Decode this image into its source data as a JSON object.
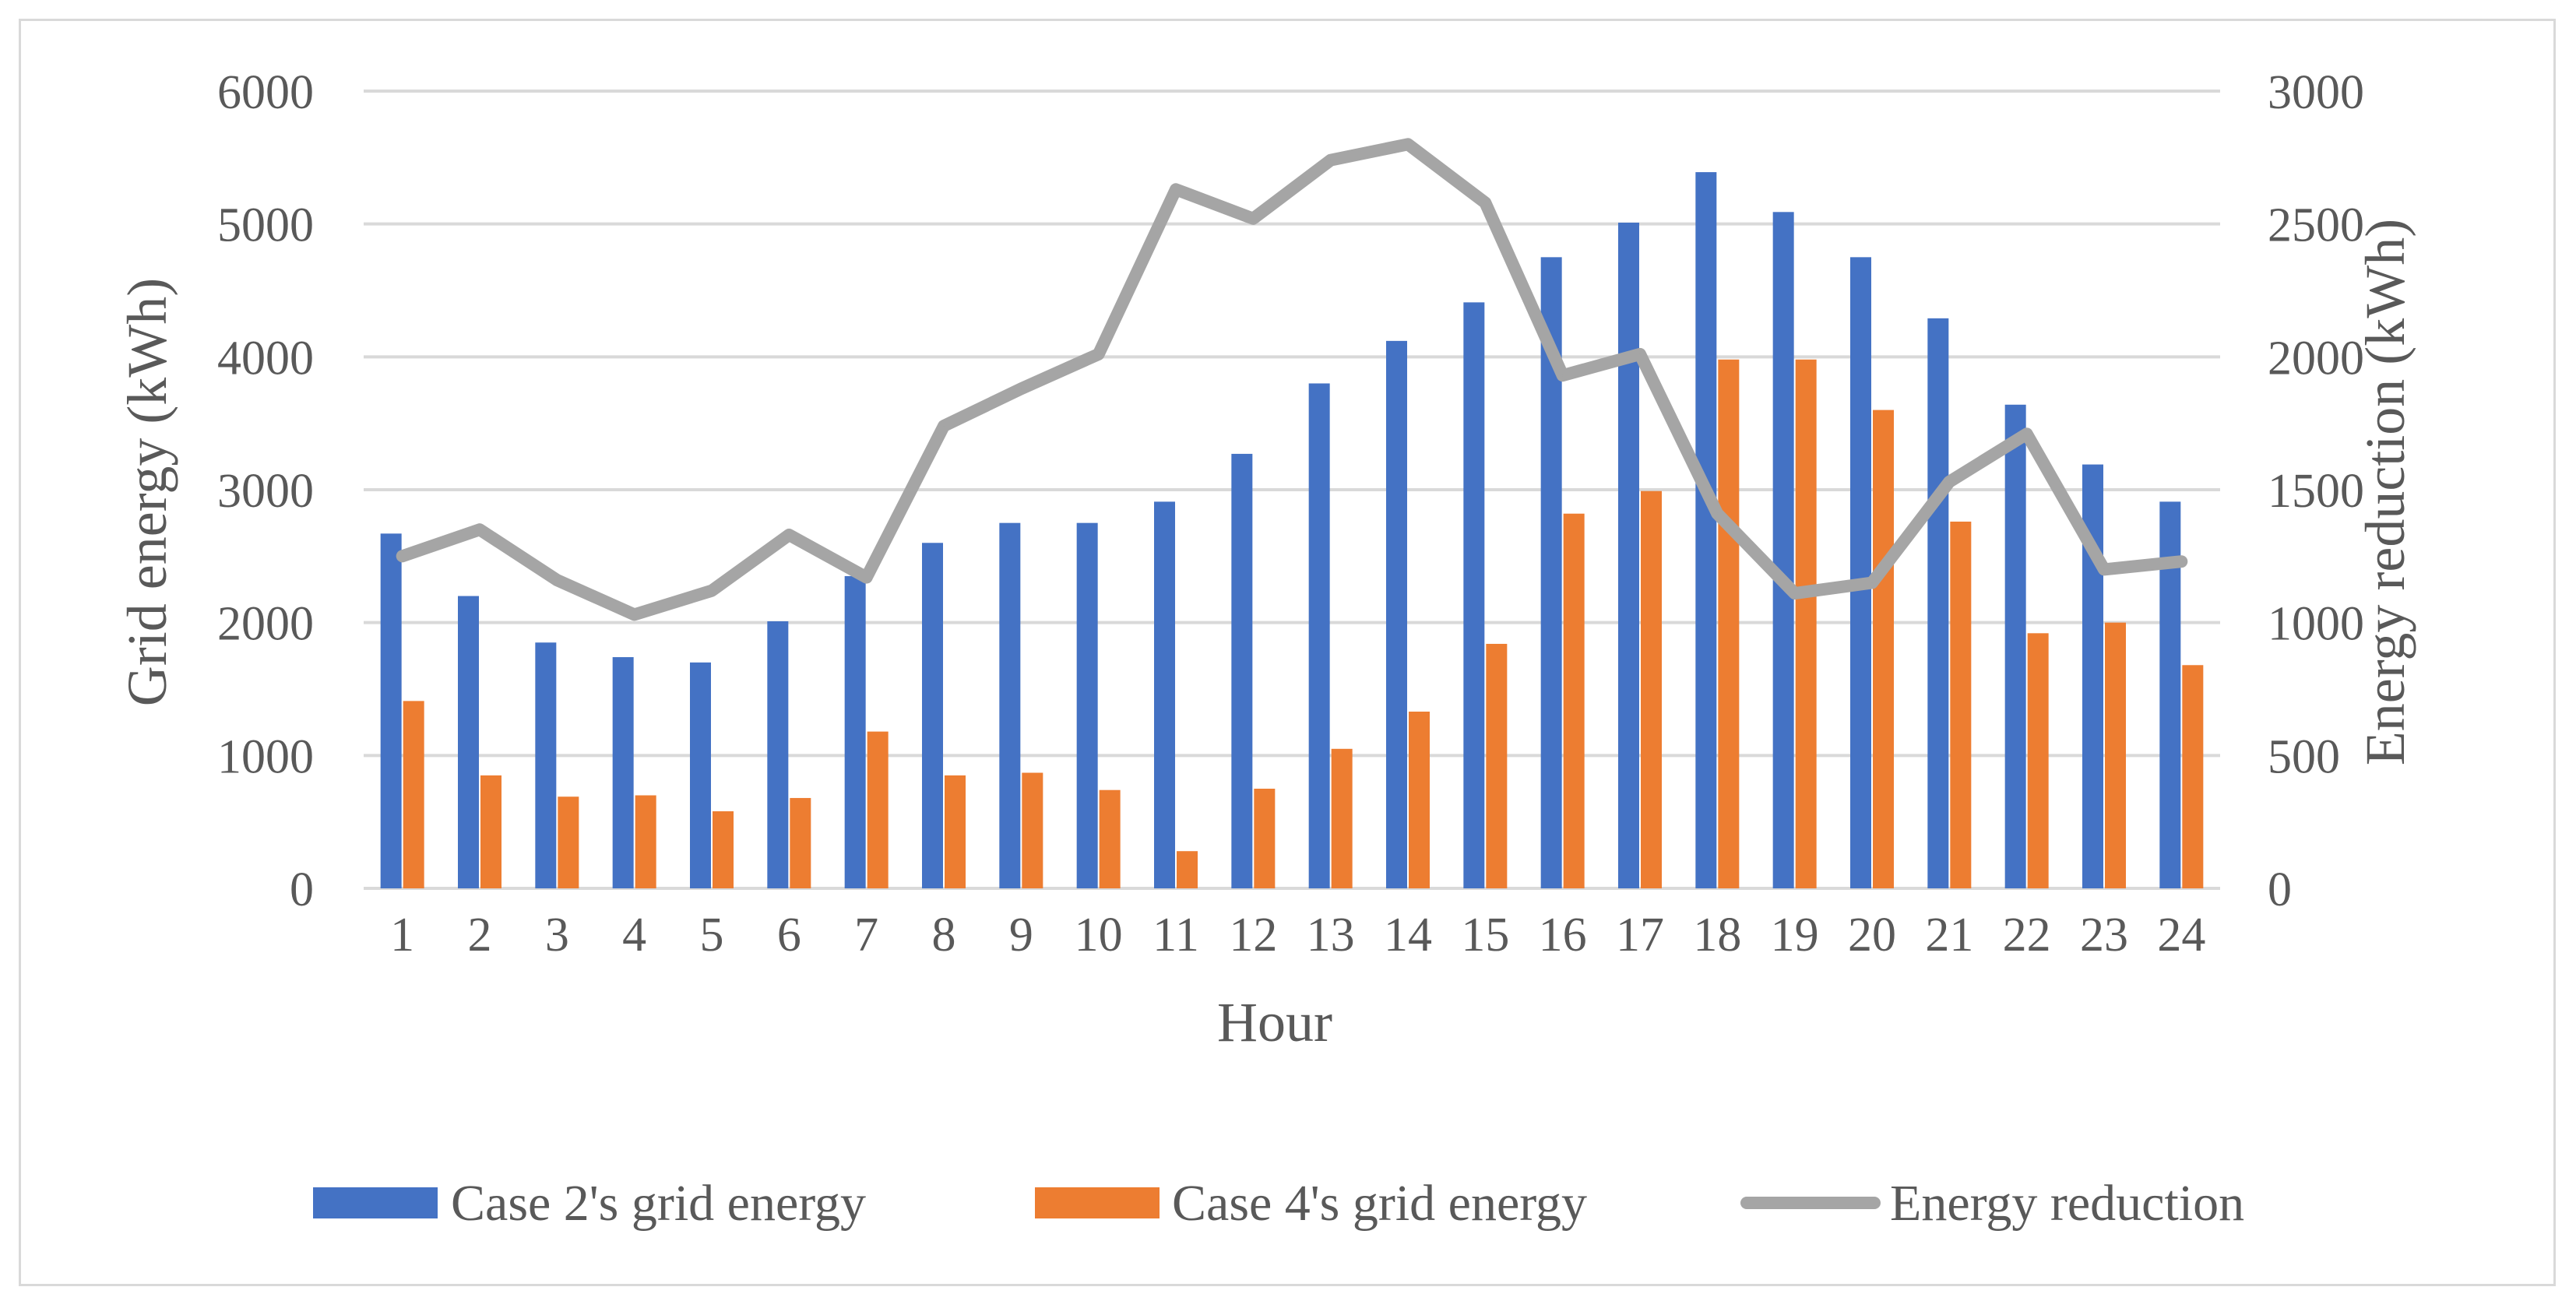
{
  "chart_data": {
    "type": "bar",
    "title": "",
    "xlabel": "Hour",
    "ylabel": "Grid energy (kWh)",
    "y2label": "Energy reduction (kWh)",
    "categories": [
      "1",
      "2",
      "3",
      "4",
      "5",
      "6",
      "7",
      "8",
      "9",
      "10",
      "11",
      "12",
      "13",
      "14",
      "15",
      "16",
      "17",
      "18",
      "19",
      "20",
      "21",
      "22",
      "23",
      "24"
    ],
    "ylim": [
      0,
      6000
    ],
    "y2lim": [
      0,
      3000
    ],
    "yticks": [
      "0",
      "1000",
      "2000",
      "3000",
      "4000",
      "5000",
      "6000"
    ],
    "y2ticks": [
      "0",
      "500",
      "1000",
      "1500",
      "2000",
      "2500",
      "3000"
    ],
    "grid": true,
    "legend_position": "bottom",
    "series": [
      {
        "name": "Case 2's grid energy",
        "type": "bar",
        "axis": "left",
        "color": "#4472c4",
        "values": [
          2670,
          2200,
          1850,
          1740,
          1700,
          2010,
          2350,
          2600,
          2750,
          2750,
          2910,
          3270,
          3800,
          4120,
          4410,
          4750,
          5010,
          5390,
          5090,
          4750,
          4290,
          3640,
          3190,
          2910
        ]
      },
      {
        "name": "Case 4's grid energy",
        "type": "bar",
        "axis": "left",
        "color": "#ed7d31",
        "values": [
          1410,
          850,
          690,
          700,
          580,
          680,
          1180,
          850,
          870,
          740,
          280,
          750,
          1050,
          1330,
          1840,
          2820,
          2990,
          3980,
          3980,
          3600,
          2760,
          1920,
          2000,
          1680
        ]
      },
      {
        "name": "Energy reduction",
        "type": "line",
        "axis": "right",
        "color": "#a5a5a5",
        "values": [
          1250,
          1350,
          1160,
          1030,
          1120,
          1330,
          1170,
          1740,
          1880,
          2010,
          2630,
          2520,
          2740,
          2800,
          2580,
          1930,
          2010,
          1410,
          1110,
          1150,
          1530,
          1710,
          1200,
          1230
        ]
      }
    ]
  }
}
